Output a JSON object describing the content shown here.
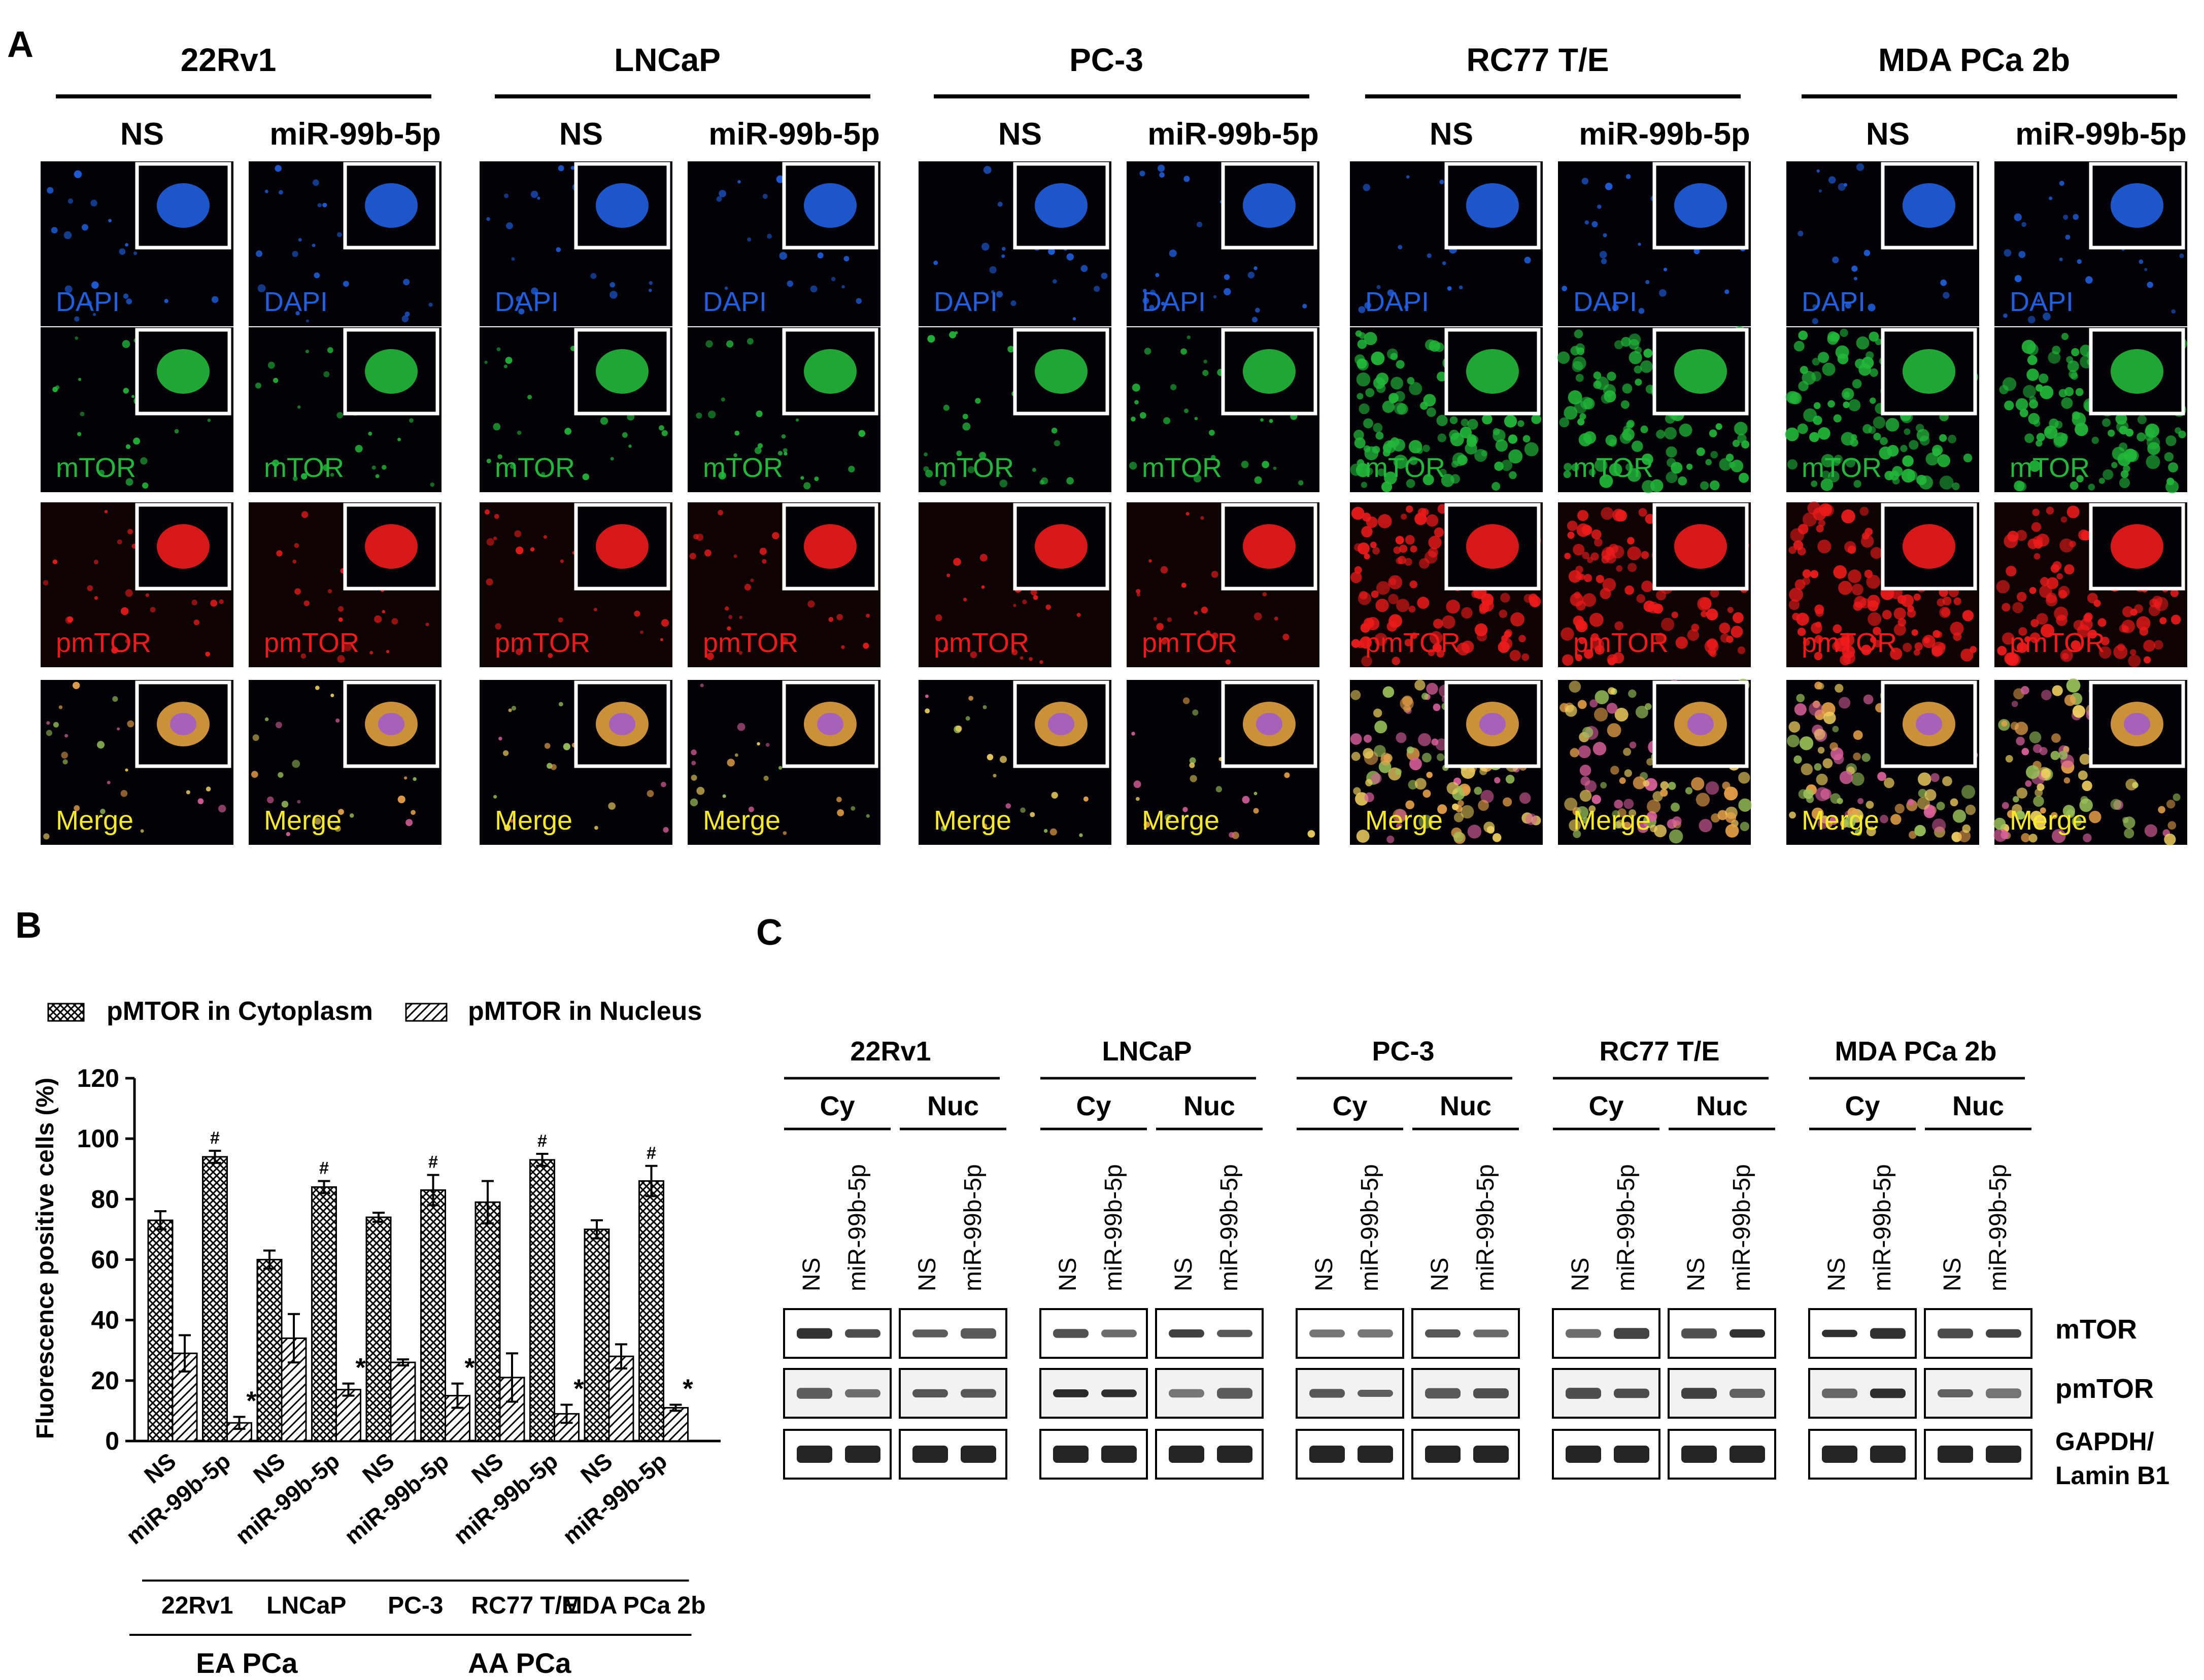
{
  "panel_a": {
    "letter": "A",
    "cell_lines": [
      "22Rv1",
      "LNCaP",
      "PC-3",
      "RC77 T/E",
      "MDA PCa 2b"
    ],
    "conditions": [
      "NS",
      "miR-99b-5p"
    ],
    "channels": [
      {
        "label": "DAPI",
        "color": "#1f5fe0"
      },
      {
        "label": "mTOR",
        "color": "#22b83a"
      },
      {
        "label": "pmTOR",
        "color": "#ee1b1b"
      },
      {
        "label": "Merge",
        "color": "#f6e92a"
      }
    ]
  },
  "panel_b": {
    "letter": "B",
    "chart_data": {
      "type": "bar",
      "ylabel": "Fluorescence positive cells (%)",
      "ylim": [
        0,
        120
      ],
      "yticks": [
        "0",
        "20",
        "40",
        "60",
        "80",
        "100",
        "120"
      ],
      "categories": [
        "NS",
        "miR-99b-5p",
        "NS",
        "miR-99b-5p",
        "NS",
        "miR-99b-5p",
        "NS",
        "miR-99b-5p",
        "NS",
        "miR-99b-5p"
      ],
      "series": [
        {
          "name": "pMTOR in Cytoplasm",
          "pattern": "crosshatch",
          "values": [
            73,
            94,
            60,
            84,
            74,
            83,
            79,
            93,
            70,
            86
          ],
          "errors": [
            3,
            2,
            3,
            2,
            1.5,
            5,
            7,
            2,
            3,
            5
          ],
          "annotations": [
            "",
            "#",
            "",
            "#",
            "",
            "#",
            "",
            "#",
            "",
            "#"
          ]
        },
        {
          "name": "pMTOR in Nucleus",
          "pattern": "diagonal",
          "values": [
            29,
            6,
            34,
            17,
            26,
            15,
            21,
            9,
            28,
            11
          ],
          "errors": [
            6,
            2,
            8,
            2,
            1,
            4,
            8,
            3,
            4,
            1
          ],
          "annotations": [
            "",
            "*",
            "",
            "*",
            "",
            "*",
            "",
            "*",
            "",
            "*"
          ]
        }
      ],
      "groups": [
        "22Rv1",
        "LNCaP",
        "PC-3",
        "RC77 T/E",
        "MDA PCa 2b"
      ],
      "supergroups": [
        {
          "label": "EA PCa",
          "groups": [
            "22Rv1",
            "LNCaP"
          ]
        },
        {
          "label": "AA PCa",
          "groups": [
            "PC-3",
            "RC77 T/E",
            "MDA PCa 2b"
          ]
        }
      ],
      "legend": "top"
    }
  },
  "panel_c": {
    "letter": "C",
    "cell_lines": [
      "22Rv1",
      "LNCaP",
      "PC-3",
      "RC77 T/E",
      "MDA PCa 2b"
    ],
    "fractions": [
      "Cy",
      "Nuc"
    ],
    "lanes": [
      "NS",
      "miR-99b-5p"
    ],
    "rows": [
      "mTOR",
      "pmTOR",
      "GAPDH/",
      "Lamin B1"
    ]
  }
}
